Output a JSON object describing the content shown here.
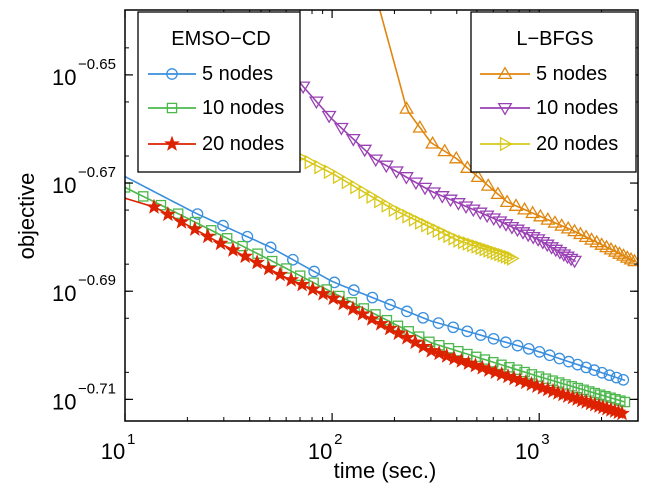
{
  "chart_data": {
    "type": "line",
    "xlabel": "time (sec.)",
    "ylabel": "objective",
    "x_scale": "log",
    "y_scale": "log",
    "xlim": [
      10,
      3000
    ],
    "ylim_log10": [
      -0.714,
      -0.638
    ],
    "x_ticks": [
      {
        "value": 10,
        "base": "10",
        "exp": "1"
      },
      {
        "value": 100,
        "base": "10",
        "exp": "2"
      },
      {
        "value": 1000,
        "base": "10",
        "exp": "3"
      }
    ],
    "y_ticks": [
      {
        "value_log10": -0.65,
        "base": "10",
        "exp": "−0.65"
      },
      {
        "value_log10": -0.67,
        "base": "10",
        "exp": "−0.67"
      },
      {
        "value_log10": -0.69,
        "base": "10",
        "exp": "−0.69"
      },
      {
        "value_log10": -0.71,
        "base": "10",
        "exp": "−0.71"
      }
    ],
    "grid": false,
    "legends": [
      {
        "title": "EMSO−CD",
        "placement": "top-left",
        "entries": [
          "5 nodes",
          "10 nodes",
          "20 nodes"
        ]
      },
      {
        "title": "L−BFGS",
        "placement": "top-right",
        "entries": [
          "5 nodes",
          "10 nodes",
          "20 nodes"
        ]
      }
    ],
    "series": [
      {
        "name": "5 nodes",
        "group": "EMSO−CD",
        "color": "#3a8fde",
        "marker": "circle",
        "start": [
          10,
          -0.6688
        ],
        "end": [
          2600,
          -0.7065
        ],
        "markers_from": [
          22,
          -0.6756
        ],
        "curve": [
          [
            10,
            -0.6688
          ],
          [
            22,
            -0.6756
          ],
          [
            50,
            -0.6818
          ],
          [
            100,
            -0.6882
          ],
          [
            300,
            -0.6955
          ],
          [
            1000,
            -0.7012
          ],
          [
            2600,
            -0.7065
          ]
        ]
      },
      {
        "name": "10 nodes",
        "group": "EMSO−CD",
        "color": "#4cb84c",
        "marker": "square",
        "curve": [
          [
            10,
            -0.6708
          ],
          [
            20,
            -0.6765
          ],
          [
            50,
            -0.6842
          ],
          [
            100,
            -0.6902
          ],
          [
            300,
            -0.6995
          ],
          [
            1000,
            -0.7058
          ],
          [
            2600,
            -0.7105
          ]
        ]
      },
      {
        "name": "20 nodes",
        "group": "EMSO−CD",
        "color": "#dd2200",
        "marker": "star",
        "curve": [
          [
            10,
            -0.6728
          ],
          [
            14,
            -0.6745
          ],
          [
            30,
            -0.6815
          ],
          [
            60,
            -0.6875
          ],
          [
            100,
            -0.6912
          ],
          [
            300,
            -0.701
          ],
          [
            1000,
            -0.7077
          ],
          [
            2600,
            -0.7128
          ]
        ]
      },
      {
        "name": "5 nodes",
        "group": "L−BFGS",
        "color": "#e0860d",
        "marker": "triangle-up",
        "curve": [
          [
            170,
            -0.638
          ],
          [
            230,
            -0.6565
          ],
          [
            300,
            -0.6625
          ],
          [
            400,
            -0.6655
          ],
          [
            700,
            -0.6735
          ],
          [
            1500,
            -0.679
          ],
          [
            2900,
            -0.6845
          ]
        ]
      },
      {
        "name": "10 nodes",
        "group": "L−BFGS",
        "color": "#9a41b4",
        "marker": "triangle-down",
        "curve": [
          [
            45,
            -0.638
          ],
          [
            70,
            -0.6515
          ],
          [
            100,
            -0.6582
          ],
          [
            160,
            -0.6655
          ],
          [
            300,
            -0.6715
          ],
          [
            600,
            -0.6765
          ],
          [
            1000,
            -0.6805
          ],
          [
            1500,
            -0.6845
          ]
        ]
      },
      {
        "name": "20 nodes",
        "group": "L−BFGS",
        "color": "#d8c81a",
        "marker": "triangle-right",
        "curve": [
          [
            42,
            -0.6618
          ],
          [
            60,
            -0.664
          ],
          [
            100,
            -0.6682
          ],
          [
            200,
            -0.675
          ],
          [
            400,
            -0.6805
          ],
          [
            750,
            -0.684
          ]
        ]
      }
    ]
  }
}
